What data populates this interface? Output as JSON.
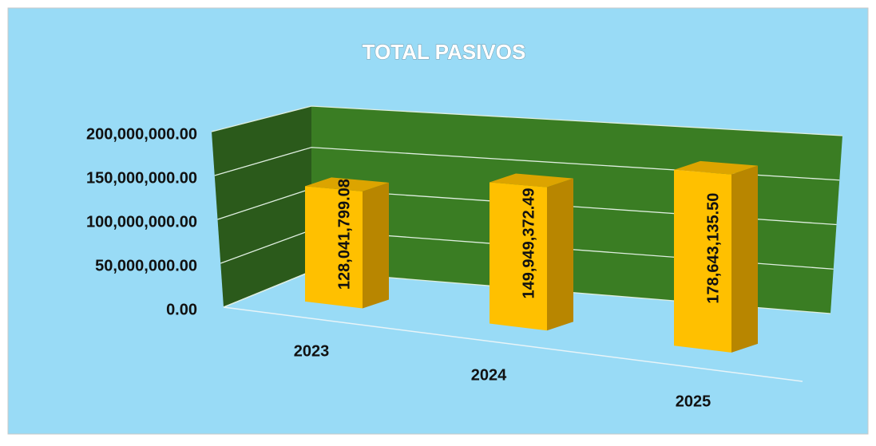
{
  "chart_data": {
    "type": "bar3d",
    "title": "TOTAL PASIVOS",
    "categories": [
      "2023",
      "2024",
      "2025"
    ],
    "values": [
      128041799.08,
      149949372.49,
      178643135.5
    ],
    "value_labels": [
      "128,041,799.08",
      "149,949,372.49",
      "178,643,135.50"
    ],
    "color": "#ffc000",
    "ylim": [
      0,
      200000000
    ],
    "yticks": [
      {
        "value": 0,
        "label": "0.00"
      },
      {
        "value": 50000000,
        "label": "50,000,000.00"
      },
      {
        "value": 100000000,
        "label": "100,000,000.00"
      },
      {
        "value": 150000000,
        "label": "150,000,000.00"
      },
      {
        "value": 200000000,
        "label": "200,000,000.00"
      }
    ],
    "grid": true
  }
}
